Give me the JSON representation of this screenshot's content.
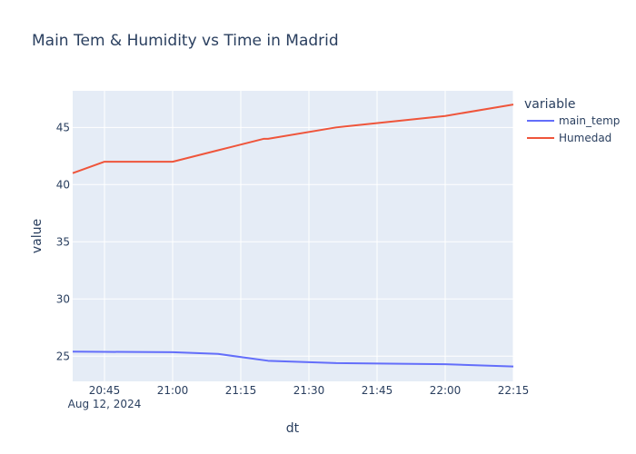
{
  "chart_data": {
    "type": "line",
    "title": "Main Tem & Humidity vs Time in Madrid",
    "xlabel": "dt",
    "ylabel": "value",
    "x_date_label": "Aug 12, 2024",
    "x_ticks": [
      "20:45",
      "21:00",
      "21:15",
      "21:30",
      "21:45",
      "22:00",
      "22:15"
    ],
    "y_ticks": [
      25,
      30,
      35,
      40,
      45
    ],
    "ylim": [
      22.8,
      48.2
    ],
    "xlim": [
      "2024-08-12 20:38",
      "2024-08-12 22:15"
    ],
    "grid": true,
    "legend_title": "variable",
    "legend_position": "right",
    "series": [
      {
        "name": "main_temp",
        "color": "#636efa",
        "x": [
          "2024-08-12 20:38",
          "2024-08-12 20:45",
          "2024-08-12 21:00",
          "2024-08-12 21:10",
          "2024-08-12 21:21",
          "2024-08-12 21:36",
          "2024-08-12 22:00",
          "2024-08-12 22:15"
        ],
        "y": [
          25.4,
          25.38,
          25.35,
          25.2,
          24.6,
          24.4,
          24.3,
          24.1
        ]
      },
      {
        "name": "Humedad",
        "color": "#ef553b",
        "x": [
          "2024-08-12 20:38",
          "2024-08-12 20:45",
          "2024-08-12 21:00",
          "2024-08-12 21:10",
          "2024-08-12 21:20",
          "2024-08-12 21:21",
          "2024-08-12 21:36",
          "2024-08-12 22:00",
          "2024-08-12 22:15"
        ],
        "y": [
          41,
          42,
          42,
          43,
          44,
          44,
          45,
          46,
          47
        ]
      }
    ]
  }
}
